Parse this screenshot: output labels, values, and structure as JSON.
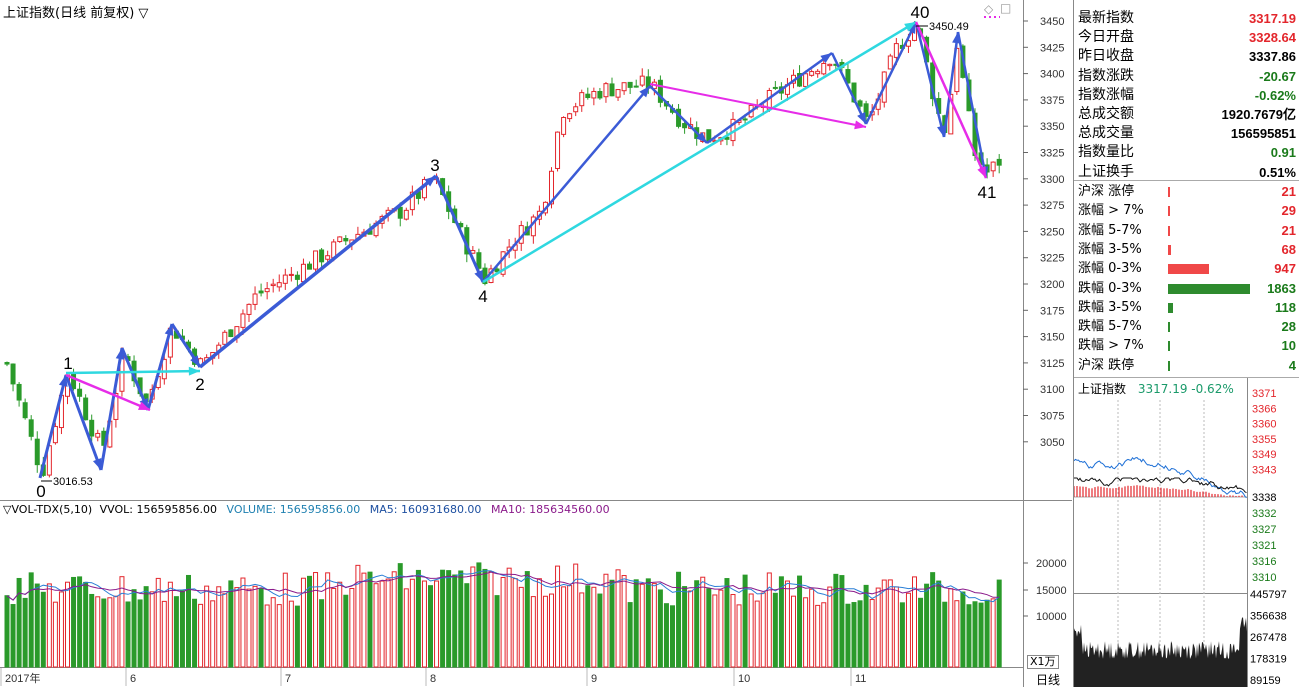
{
  "chart_title": "上证指数(日线 前复权)",
  "chart_title_arrow": "▽",
  "top_icons": {
    "diamond": "◇",
    "square": "□"
  },
  "price_axis": [
    "3450",
    "3425",
    "3400",
    "3375",
    "3350",
    "3325",
    "3300",
    "3275",
    "3250",
    "3225",
    "3200",
    "3175",
    "3150",
    "3125",
    "3100",
    "3075",
    "3050"
  ],
  "wave_labels": [
    "0",
    "1",
    "2",
    "3",
    "4",
    "40",
    "41"
  ],
  "annotations": {
    "low_value": "3016.53",
    "high_value": "3450.49"
  },
  "volume_header": {
    "name": "▽VOL-TDX(5,10)",
    "vvol": "VVOL: 156595856.00",
    "volume": "VOLUME: 156595856.00",
    "ma5": "MA5: 160931680.00",
    "ma10": "MA10: 185634560.00"
  },
  "volume_axis": [
    "20000",
    "15000",
    "10000"
  ],
  "volume_unit": "X1万",
  "date_axis": [
    "2017年",
    "6",
    "7",
    "8",
    "9",
    "10",
    "11"
  ],
  "period_label": "日线",
  "quote": [
    {
      "label": "最新指数",
      "value": "3317.19",
      "color": "red"
    },
    {
      "label": "今日开盘",
      "value": "3328.64",
      "color": "red"
    },
    {
      "label": "昨日收盘",
      "value": "3337.86",
      "color": "black"
    },
    {
      "label": "指数涨跌",
      "value": "-20.67",
      "color": "green"
    },
    {
      "label": "指数涨幅",
      "value": "-0.62%",
      "color": "green"
    },
    {
      "label": "总成交额",
      "value": "1920.7679亿",
      "color": "black"
    },
    {
      "label": "总成交量",
      "value": "156595851",
      "color": "black"
    },
    {
      "label": "指数量比",
      "value": "0.91",
      "color": "green"
    },
    {
      "label": "上证换手",
      "value": "0.51%",
      "color": "black"
    }
  ],
  "breadth": [
    {
      "label": "沪深 涨停",
      "value": "21",
      "color": "red",
      "bar": 0.02
    },
    {
      "label": "涨幅 > 7%",
      "value": "29",
      "color": "red",
      "bar": 0.02
    },
    {
      "label": "涨幅 5-7%",
      "value": "21",
      "color": "red",
      "bar": 0.02
    },
    {
      "label": "涨幅 3-5%",
      "value": "68",
      "color": "red",
      "bar": 0.04
    },
    {
      "label": "涨幅 0-3%",
      "value": "947",
      "color": "red",
      "bar": 0.5
    },
    {
      "label": "跌幅 0-3%",
      "value": "1863",
      "color": "green",
      "bar": 1.0
    },
    {
      "label": "跌幅 3-5%",
      "value": "118",
      "color": "green",
      "bar": 0.06
    },
    {
      "label": "跌幅 5-7%",
      "value": "28",
      "color": "green",
      "bar": 0.02
    },
    {
      "label": "跌幅 > 7%",
      "value": "10",
      "color": "green",
      "bar": 0.02
    },
    {
      "label": "沪深 跌停",
      "value": "4",
      "color": "green",
      "bar": 0.02
    }
  ],
  "mini": {
    "title": "上证指数",
    "info": "3317.19 -0.62%",
    "price_axis_red": [
      "3371",
      "3366",
      "3360",
      "3355",
      "3349",
      "3343"
    ],
    "price_axis_mid": "3338",
    "price_axis_green": [
      "3332",
      "3327",
      "3321",
      "3316",
      "3310"
    ],
    "volume_axis": [
      "445797",
      "356638",
      "267478",
      "178319",
      "89159"
    ]
  },
  "colors": {
    "up": "#e3262c",
    "down": "#2a9a2a",
    "blue": "#3b5bd6",
    "cyan": "#2fd8e0",
    "magenta": "#e62ce8"
  }
}
